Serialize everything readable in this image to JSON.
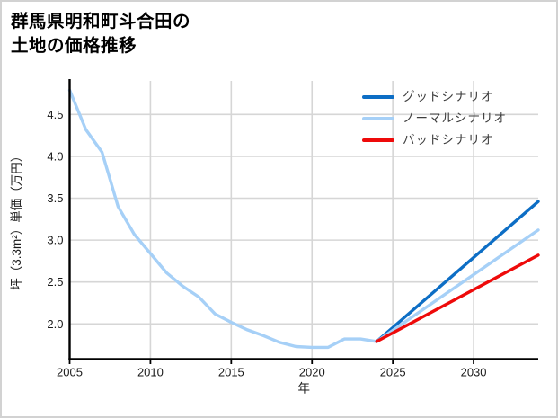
{
  "title_lines": [
    "群馬県明和町斗合田の",
    "土地の価格推移"
  ],
  "colors": {
    "background": "#ffffff",
    "frame_border": "#d2d2d2",
    "grid": "#d6d6d6",
    "axis": "#000000",
    "tick_text": "#1a1a1a",
    "legend_text": "#3d3d3d",
    "good_scenario": "#0d6ec5",
    "normal_scenario": "#a6d0f7",
    "bad_scenario": "#ee0a0a"
  },
  "chart_data": {
    "type": "line",
    "title": "群馬県明和町斗合田の土地の価格推移",
    "xlabel": "年",
    "ylabel": "坪（3.3m²）単価（万円）",
    "xlim": [
      2005,
      2034
    ],
    "ylim": [
      1.58,
      4.9
    ],
    "xticks": [
      2005,
      2010,
      2015,
      2020,
      2025,
      2030
    ],
    "ytick_labels": [
      "2.0",
      "2.5",
      "3.0",
      "3.5",
      "4.0",
      "4.5"
    ],
    "grid": true,
    "legend_position": "upper right",
    "series": [
      {
        "key": "history",
        "label": "",
        "color": "#a6d0f7",
        "x": [
          2005,
          2006,
          2007,
          2008,
          2009,
          2010,
          2011,
          2012,
          2013,
          2014,
          2015,
          2016,
          2017,
          2018,
          2019,
          2020,
          2021,
          2022,
          2023,
          2024
        ],
        "values": [
          4.79,
          4.32,
          4.05,
          3.4,
          3.07,
          2.84,
          2.61,
          2.45,
          2.32,
          2.12,
          2.02,
          1.93,
          1.86,
          1.78,
          1.73,
          1.72,
          1.72,
          1.82,
          1.82,
          1.79
        ]
      },
      {
        "key": "good",
        "label": "グッドシナリオ",
        "color": "#0d6ec5",
        "x": [
          2024,
          2034
        ],
        "values": [
          1.79,
          3.46
        ]
      },
      {
        "key": "normal",
        "label": "ノーマルシナリオ",
        "color": "#a6d0f7",
        "x": [
          2024,
          2034
        ],
        "values": [
          1.79,
          3.12
        ]
      },
      {
        "key": "bad",
        "label": "バッドシナリオ",
        "color": "#ee0a0a",
        "x": [
          2024,
          2034
        ],
        "values": [
          1.79,
          2.82
        ]
      }
    ]
  }
}
